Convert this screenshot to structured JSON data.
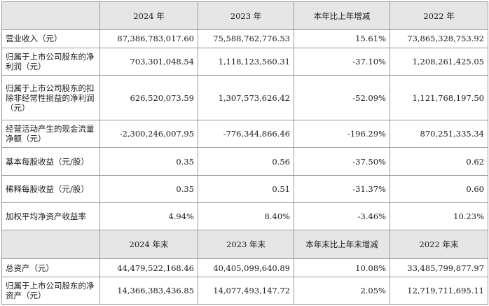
{
  "header_top": [
    "",
    "2024 年",
    "2023 年",
    "本年比上年增减",
    "2022 年"
  ],
  "rows_top": [
    {
      "label": "营业收入（元）",
      "v2024": "87,386,783,017.60",
      "v2023": "75,588,762,776.53",
      "change": "15.61%",
      "v2022": "73,865,328,753.92"
    },
    {
      "label": "归属于上市公司股东的净利润（元）",
      "v2024": "703,301,048.54",
      "v2023": "1,118,123,560.31",
      "change": "-37.10%",
      "v2022": "1,208,261,425.05"
    },
    {
      "label": "归属于上市公司股东的扣除非经常性损益的净利润（元）",
      "v2024": "626,520,073.59",
      "v2023": "1,307,573,626.42",
      "change": "-52.09%",
      "v2022": "1,121,768,197.50"
    },
    {
      "label": "经营活动产生的现金流量净额（元）",
      "v2024": "-2,300,246,007.95",
      "v2023": "-776,344,866.46",
      "change": "-196.29%",
      "v2022": "870,251,335.34"
    },
    {
      "label": "基本每股收益（元/股）",
      "v2024": "0.35",
      "v2023": "0.56",
      "change": "-37.50%",
      "v2022": "0.62"
    },
    {
      "label": "稀释每股收益（元/股）",
      "v2024": "0.35",
      "v2023": "0.51",
      "change": "-31.37%",
      "v2022": "0.60"
    },
    {
      "label": "加权平均净资产收益率",
      "v2024": "4.94%",
      "v2023": "8.40%",
      "change": "-3.46%",
      "v2022": "10.23%"
    }
  ],
  "header_bottom": [
    "",
    "2024 年末",
    "2023 年末",
    "本年末比上年末增减",
    "2022 年末"
  ],
  "rows_bottom": [
    {
      "label": "总资产（元）",
      "v2024": "44,479,522,168.46",
      "v2023": "40,405,099,640.89",
      "change": "10.08%",
      "v2022": "33,485,799,877.97"
    },
    {
      "label": "归属于上市公司股东的净资产（元）",
      "v2024": "14,366,383,436.85",
      "v2023": "14,077,493,147.72",
      "change": "2.05%",
      "v2022": "12,719,711,695.11"
    }
  ]
}
